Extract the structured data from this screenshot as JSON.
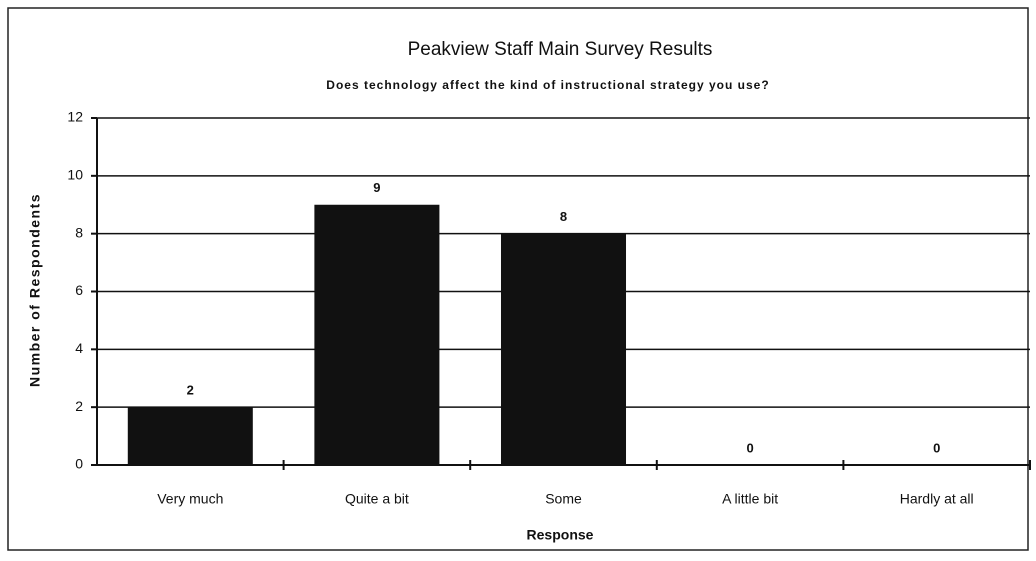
{
  "chart_data": {
    "type": "bar",
    "title": "Peakview Staff Main Survey Results",
    "subtitle": "Does technology affect the kind of instructional strategy you use?",
    "x_label": "Response",
    "y_label": "Number of Respondents",
    "categories": [
      "Very much",
      "Quite a bit",
      "Some",
      "A little bit",
      "Hardly at all"
    ],
    "values": [
      2,
      9,
      8,
      0,
      0
    ],
    "color": "#111111",
    "ylim": [
      0,
      12
    ],
    "yticks": [
      0,
      2,
      4,
      6,
      8,
      10,
      12
    ],
    "grid": true
  }
}
